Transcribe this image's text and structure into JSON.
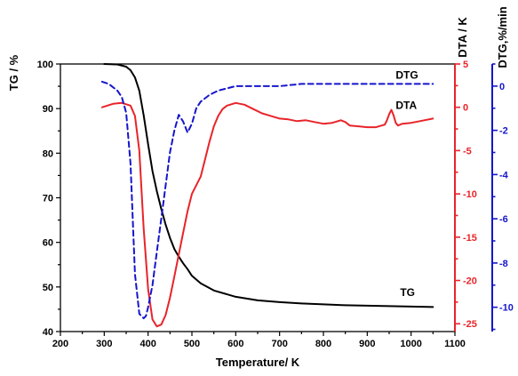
{
  "chart_data": {
    "type": "line",
    "xlabel": "Temperature/ K",
    "x_axis": {
      "range": [
        200,
        1100
      ],
      "ticks": [
        200,
        300,
        400,
        500,
        600,
        700,
        800,
        900,
        1000,
        1100
      ],
      "color": "#000000"
    },
    "axes": [
      {
        "id": "tg",
        "label": "TG / %",
        "position": "left",
        "range": [
          40,
          100
        ],
        "ticks": [
          40,
          50,
          60,
          70,
          80,
          90,
          100
        ],
        "color": "#000000"
      },
      {
        "id": "dta",
        "label": "DTA / K",
        "position": "right",
        "range": [
          -25.9,
          5
        ],
        "ticks": [
          5,
          0,
          -5,
          -10,
          -15,
          -20,
          -25
        ],
        "color": "#e8242a"
      },
      {
        "id": "dtg",
        "label": "DTG,%/min",
        "position": "right-outer",
        "range": [
          -11.1,
          1
        ],
        "ticks": [
          0,
          -2,
          -4,
          -6,
          -8,
          -10
        ],
        "color": "#1515cc"
      }
    ],
    "series": [
      {
        "name": "TG",
        "axis": "tg",
        "color": "#000000",
        "style": "solid",
        "x": [
          300,
          330,
          350,
          360,
          370,
          380,
          390,
          400,
          410,
          420,
          430,
          440,
          450,
          460,
          470,
          480,
          490,
          500,
          520,
          550,
          600,
          650,
          700,
          750,
          800,
          850,
          900,
          950,
          1000,
          1050
        ],
        "y": [
          100,
          99.9,
          99.4,
          98.6,
          97,
          94,
          88.5,
          82,
          76,
          71.5,
          67.5,
          64,
          61,
          58.5,
          56.8,
          55.3,
          54,
          52.5,
          50.8,
          49.2,
          47.8,
          47,
          46.6,
          46.3,
          46.1,
          45.9,
          45.8,
          45.7,
          45.6,
          45.5
        ]
      },
      {
        "name": "DTA",
        "axis": "dta",
        "color": "#e8242a",
        "style": "solid",
        "x": [
          295,
          320,
          340,
          360,
          370,
          380,
          390,
          400,
          410,
          420,
          430,
          440,
          450,
          460,
          470,
          480,
          490,
          500,
          510,
          520,
          530,
          540,
          550,
          560,
          570,
          580,
          600,
          620,
          640,
          660,
          680,
          700,
          720,
          740,
          760,
          780,
          800,
          820,
          840,
          850,
          860,
          880,
          900,
          920,
          940,
          945,
          950,
          955,
          960,
          965,
          970,
          980,
          1000,
          1020,
          1050
        ],
        "y": [
          0,
          0.4,
          0.5,
          0.2,
          -1,
          -5,
          -14,
          -21,
          -24.5,
          -25.3,
          -25.1,
          -24,
          -22,
          -19.5,
          -17,
          -14.5,
          -12,
          -10,
          -9,
          -8,
          -6,
          -4,
          -2.2,
          -1,
          -0.2,
          0.2,
          0.5,
          0.3,
          -0.2,
          -0.7,
          -1,
          -1.3,
          -1.4,
          -1.6,
          -1.5,
          -1.7,
          -1.9,
          -1.8,
          -1.5,
          -1.7,
          -2.1,
          -2.2,
          -2.3,
          -2.3,
          -2,
          -1.5,
          -0.8,
          -0.3,
          -0.9,
          -1.8,
          -2.1,
          -1.9,
          -1.8,
          -1.6,
          -1.3
        ]
      },
      {
        "name": "DTG",
        "axis": "dtg",
        "color": "#1515cc",
        "style": "dashed",
        "x": [
          295,
          310,
          330,
          340,
          350,
          360,
          365,
          370,
          380,
          390,
          395,
          400,
          410,
          420,
          430,
          440,
          450,
          460,
          470,
          480,
          490,
          500,
          510,
          520,
          540,
          560,
          580,
          600,
          650,
          700,
          750,
          800,
          850,
          900,
          950,
          1000,
          1050
        ],
        "y": [
          0.2,
          0.1,
          -0.2,
          -0.5,
          -1.2,
          -3.5,
          -6,
          -8.5,
          -10.3,
          -10.5,
          -10.4,
          -10,
          -9,
          -7.5,
          -6,
          -4.5,
          -3,
          -2,
          -1.3,
          -1.6,
          -2.1,
          -1.7,
          -1,
          -0.7,
          -0.4,
          -0.2,
          -0.1,
          0,
          0,
          0,
          0.1,
          0.1,
          0.1,
          0.1,
          0.1,
          0.1,
          0.1
        ]
      }
    ],
    "annotations": [
      {
        "text": "DTG",
        "x": 965,
        "y": 3.3,
        "axis": "dta"
      },
      {
        "text": "DTA",
        "x": 965,
        "y": -0.2,
        "axis": "dta"
      },
      {
        "text": "TG",
        "x": 975,
        "y": 48,
        "axis": "tg"
      }
    ]
  }
}
